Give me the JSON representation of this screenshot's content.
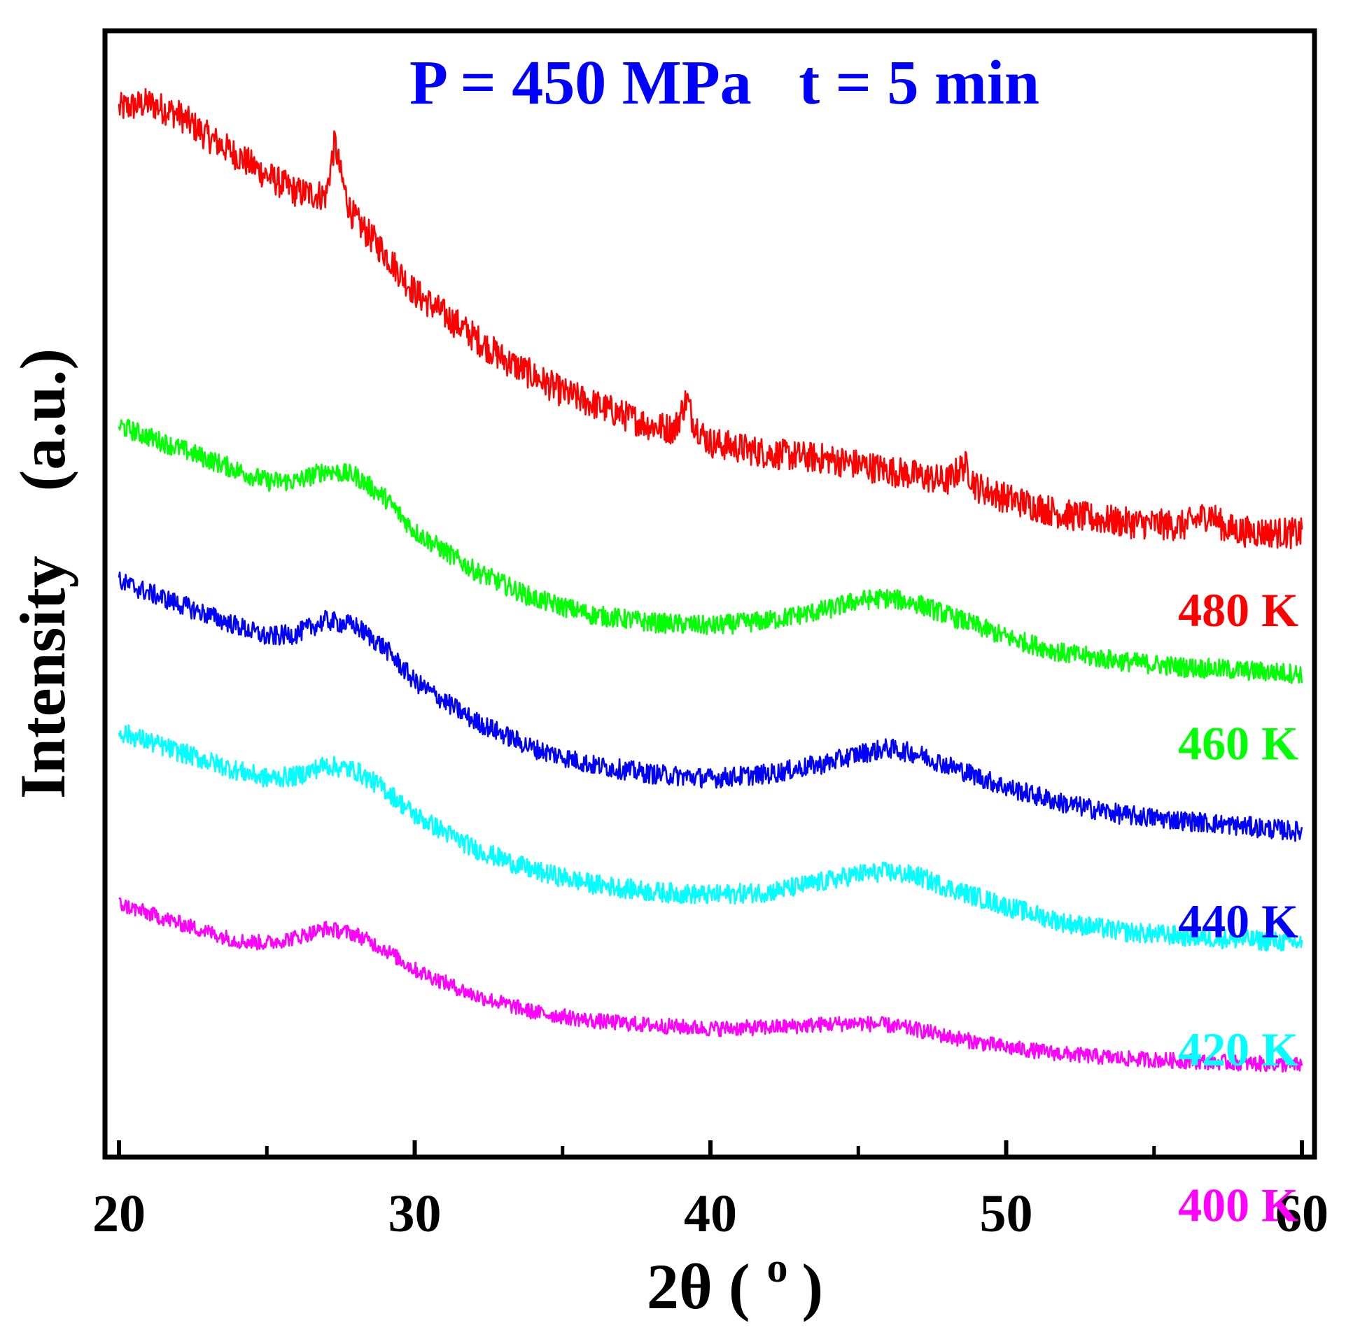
{
  "chart_data": {
    "type": "line",
    "title": "P = 450 MPa   t = 5 min",
    "xlabel": "2θ ( o )",
    "xlabel_main": "2θ (",
    "xlabel_sup": "o",
    "xlabel_close": ")",
    "ylabel": "Intensity    (a.u.)",
    "xlim": [
      20,
      60
    ],
    "ylim": [
      0,
      100
    ],
    "x_ticks": [
      20,
      30,
      40,
      50,
      60
    ],
    "x_minor_ticks": [
      25,
      35,
      45,
      55
    ],
    "y_ticks_shown": false,
    "series": [
      {
        "name": "480 K",
        "label": "480 K",
        "color": "#ff0000",
        "noise": 1.4,
        "x": [
          20,
          21,
          22,
          23,
          24,
          25,
          26,
          27,
          27.3,
          27.5,
          27.8,
          28,
          29,
          30,
          31,
          32,
          33,
          34,
          35,
          36,
          37,
          38,
          38.8,
          39.2,
          39.4,
          39.8,
          40,
          42,
          44,
          46,
          48,
          48.6,
          49,
          50,
          52,
          54,
          56,
          56.9,
          57.4,
          58,
          60
        ],
        "y": [
          94,
          94.5,
          93.5,
          91.5,
          89.8,
          88,
          86.5,
          86.2,
          91,
          88,
          85,
          84,
          81,
          77.5,
          75.5,
          73.5,
          71.5,
          70,
          68.5,
          67.5,
          66.5,
          65.5,
          65.2,
          68,
          66,
          64.5,
          64,
          63,
          62.5,
          61.5,
          60.5,
          62,
          60,
          59,
          57.5,
          56.8,
          56.5,
          57.6,
          56.3,
          56,
          55.8
        ]
      },
      {
        "name": "460 K",
        "label": "460 K",
        "color": "#00ff00",
        "noise": 0.9,
        "x": [
          20,
          22,
          24,
          25,
          26,
          27,
          28,
          29,
          30,
          32,
          34,
          36,
          38,
          40,
          42,
          44,
          45,
          46,
          47,
          48,
          50,
          52,
          54,
          56,
          58,
          60
        ],
        "y": [
          65.5,
          63.5,
          61.5,
          60.5,
          60.5,
          61.5,
          61,
          59,
          56,
          52.5,
          50,
          48.5,
          47.8,
          47.5,
          48,
          49,
          49.8,
          50,
          49.5,
          48.5,
          46.5,
          45,
          44.3,
          43.8,
          43.5,
          43.2
        ]
      },
      {
        "name": "440 K",
        "label": "440 K",
        "color": "#0000ff",
        "noise": 0.9,
        "x": [
          20,
          22,
          24,
          25,
          26,
          27,
          28,
          29,
          30,
          32,
          34,
          36,
          38,
          40,
          42,
          44,
          45,
          46,
          47,
          48,
          50,
          52,
          54,
          56,
          58,
          60
        ],
        "y": [
          51.5,
          49.5,
          47.5,
          46.5,
          46.8,
          48,
          47.5,
          45.5,
          42.5,
          39,
          36.5,
          35,
          34.2,
          33.8,
          34.2,
          35.2,
          36,
          36.5,
          36,
          35,
          33,
          31.5,
          30.5,
          30,
          29.5,
          29
        ]
      },
      {
        "name": "420 K",
        "label": "420 K",
        "color": "#00ffff",
        "noise": 0.9,
        "x": [
          20,
          22,
          24,
          25,
          26,
          27,
          28,
          29,
          30,
          32,
          34,
          36,
          38,
          40,
          42,
          44,
          45,
          46,
          47,
          48,
          50,
          52,
          54,
          56,
          58,
          60
        ],
        "y": [
          38,
          36.2,
          34.5,
          33.8,
          34,
          35,
          34.5,
          32.8,
          30.5,
          27.5,
          25.5,
          24.3,
          23.6,
          23.3,
          23.6,
          24.6,
          25.2,
          25.4,
          25,
          24,
          22.3,
          20.8,
          20,
          19.6,
          19.3,
          19
        ]
      },
      {
        "name": "400 K",
        "label": "400 K",
        "color": "#ff00ff",
        "noise": 0.7,
        "x": [
          20,
          22,
          24,
          25,
          26,
          27,
          28,
          29,
          30,
          32,
          34,
          36,
          38,
          40,
          42,
          44,
          45,
          46,
          47,
          48,
          50,
          52,
          54,
          56,
          58,
          60
        ],
        "y": [
          22.5,
          20.8,
          19.2,
          19,
          19.5,
          20.3,
          19.8,
          18.4,
          16.6,
          14.3,
          12.8,
          12,
          11.6,
          11.3,
          11.4,
          11.7,
          11.8,
          11.6,
          11.2,
          10.6,
          9.6,
          9,
          8.6,
          8.4,
          8.2,
          8
        ]
      }
    ],
    "label_y": {
      "480 K": 47.5,
      "460 K": 35.5,
      "440 K": 19.5,
      "420 K": 8.0,
      "400 K": -6.0
    },
    "grid": false,
    "legend": "inline-right"
  }
}
